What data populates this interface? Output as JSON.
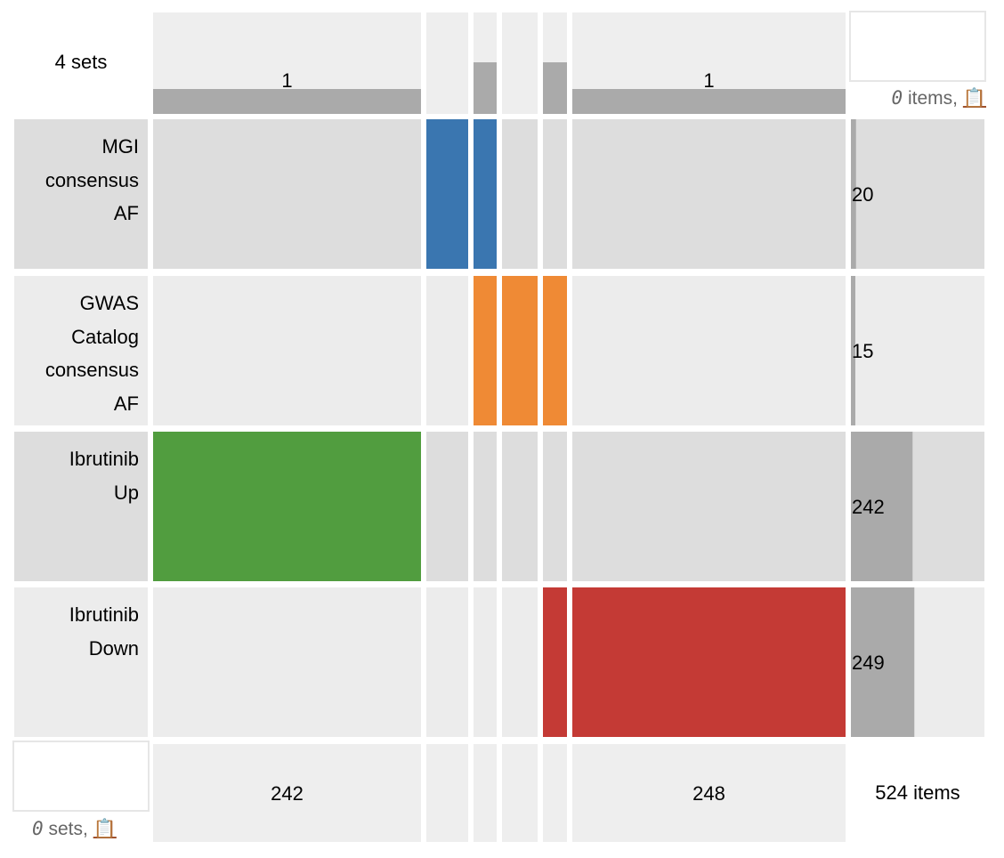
{
  "header": {
    "title": "4 sets",
    "top_status_count": "0",
    "top_status_text": " items, ",
    "bottom_status_count": "0",
    "bottom_status_text": " sets, ",
    "clipboard_icon": "📋",
    "total_label": "524 items"
  },
  "chart_data": {
    "type": "heatmap",
    "sets": [
      {
        "name": "MGI\nconsensus\nAF",
        "count": 20,
        "color": "#3a76b0"
      },
      {
        "name": "GWAS\nCatalog\nconsensus\nAF",
        "count": 15,
        "color": "#ef8a35"
      },
      {
        "name": "Ibrutinib\nUp",
        "count": 242,
        "color": "#519d3f"
      },
      {
        "name": "Ibrutinib\nDown",
        "count": 249,
        "color": "#c43a35"
      }
    ],
    "columns": [
      {
        "count": 242,
        "degree": 1,
        "members": [
          2
        ],
        "show_count": true,
        "show_degree": true
      },
      {
        "count": 0,
        "degree": 0,
        "members": [
          0
        ],
        "show_count": false,
        "show_degree": false
      },
      {
        "count": 0,
        "degree": 2,
        "members": [
          0,
          1
        ],
        "show_count": false,
        "show_degree": false
      },
      {
        "count": 0,
        "degree": 0,
        "members": [
          1
        ],
        "show_count": false,
        "show_degree": false
      },
      {
        "count": 0,
        "degree": 2,
        "members": [
          1,
          3
        ],
        "show_count": false,
        "show_degree": false
      },
      {
        "count": 248,
        "degree": 1,
        "members": [
          3
        ],
        "show_count": true,
        "show_degree": true
      }
    ],
    "degree_max": 2,
    "set_size_max": 524
  }
}
